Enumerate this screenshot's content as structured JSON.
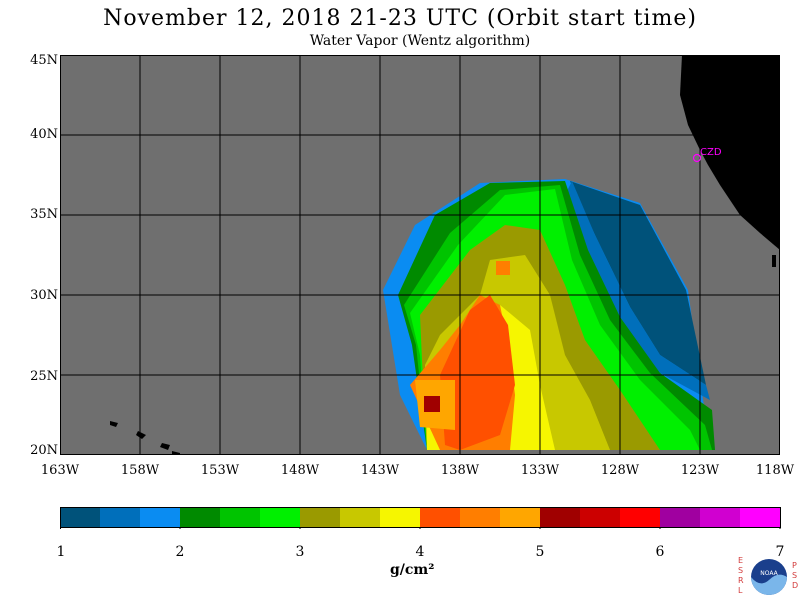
{
  "title": "November 12, 2018  21-23 UTC  (Orbit start time)",
  "subtitle": "Water Vapor (Wentz algorithm)",
  "map": {
    "lat_labels": [
      "45N",
      "40N",
      "35N",
      "30N",
      "25N",
      "20N"
    ],
    "lon_labels": [
      "163W",
      "158W",
      "153W",
      "148W",
      "143W",
      "138W",
      "133W",
      "128W",
      "123W",
      "118W"
    ],
    "station_label": "CZD",
    "colors": {
      "ocean_no_data": "#6f6f6f",
      "land": "#000000",
      "grid": "#000000",
      "station": "#ff00ff"
    }
  },
  "colorbar": {
    "labels": [
      "1",
      "2",
      "3",
      "4",
      "5",
      "6",
      "7"
    ],
    "colors": [
      "#00527a",
      "#006fbb",
      "#0a8cf2",
      "#008a00",
      "#00c400",
      "#00f000",
      "#9a9a00",
      "#c8c800",
      "#f6f600",
      "#ff5000",
      "#ff7e00",
      "#ffa600",
      "#a00000",
      "#cc0000",
      "#ff0000",
      "#a000a0",
      "#d000d0",
      "#ff00ff"
    ],
    "units": "g/cm²"
  },
  "logo": {
    "left_letters": [
      "E",
      "S",
      "R",
      "L"
    ],
    "right_letters": [
      "P",
      "S",
      "D"
    ],
    "name": "NOAA"
  }
}
